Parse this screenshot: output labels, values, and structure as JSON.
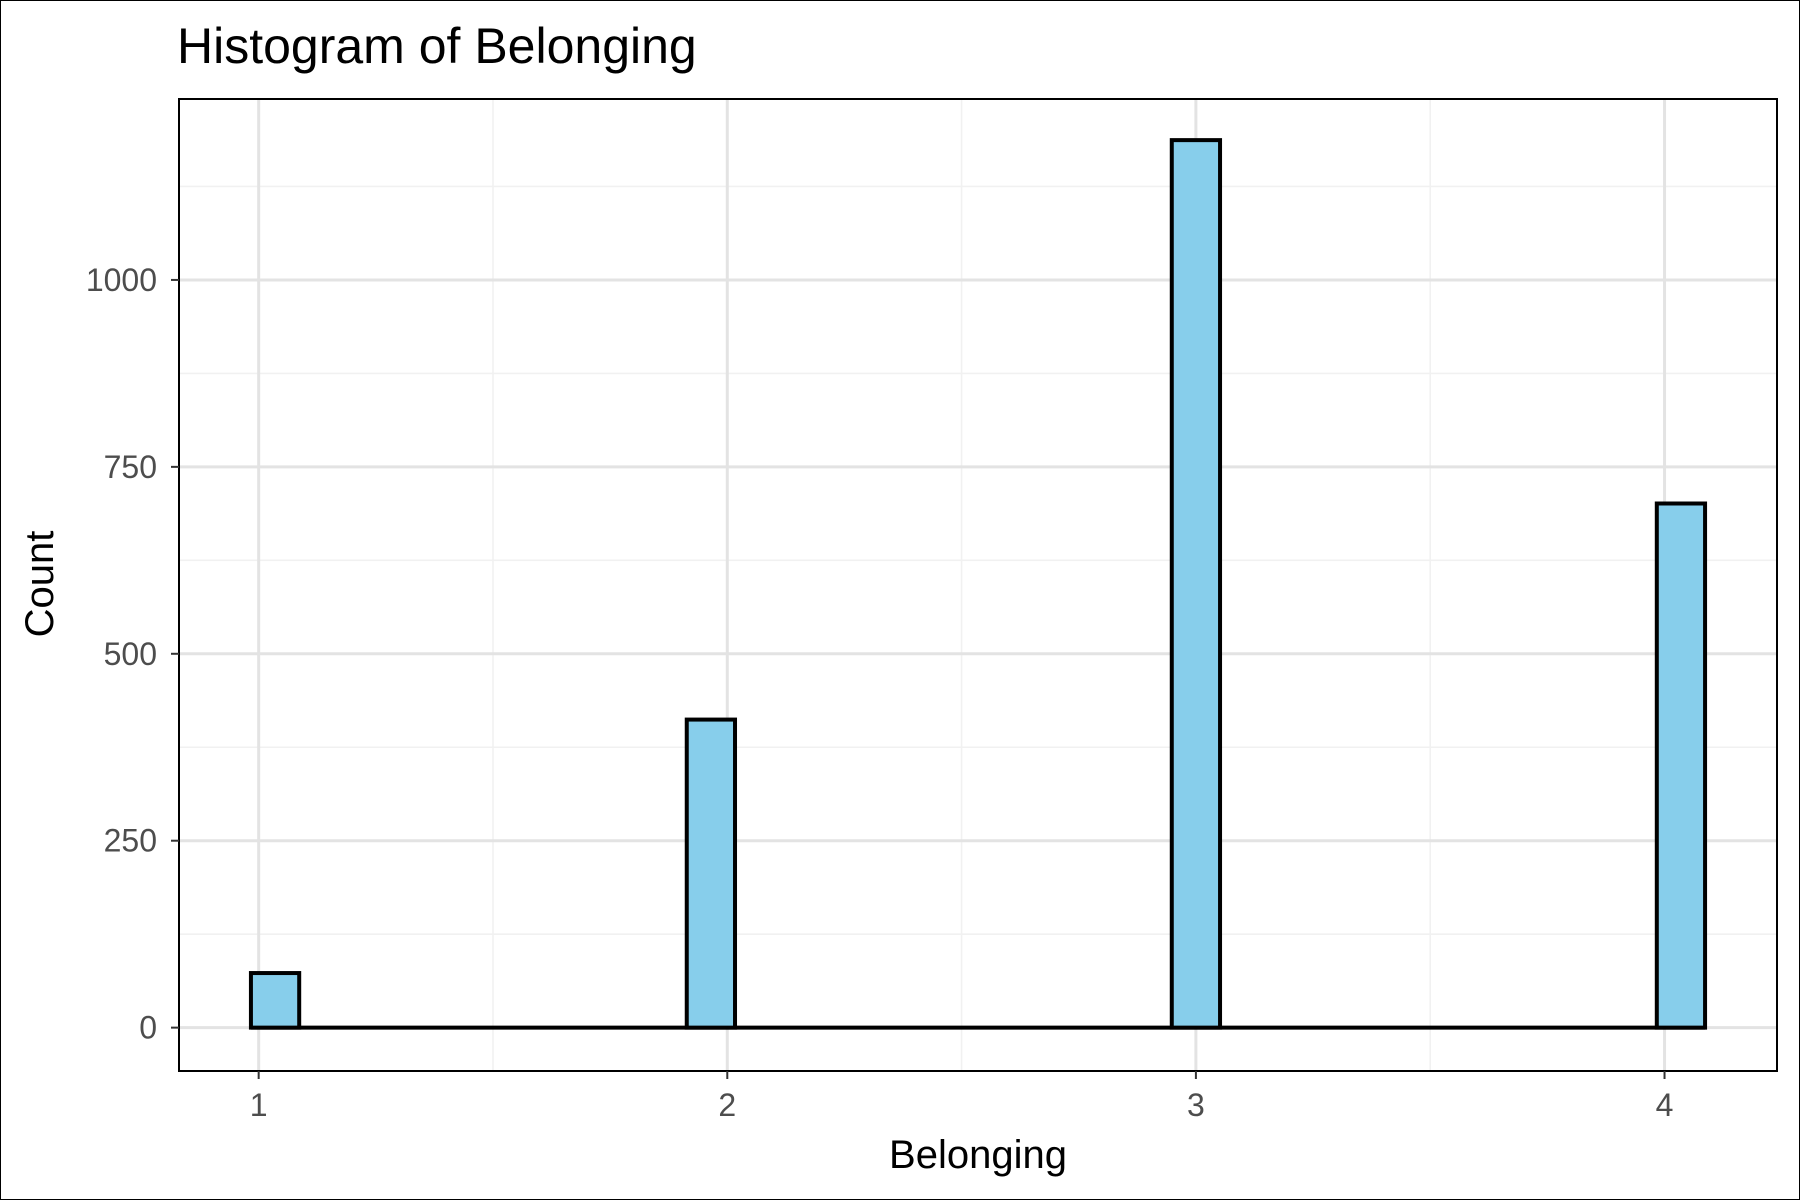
{
  "chart_data": {
    "type": "bar",
    "title": "Histogram of Belonging",
    "xlabel": "Belonging",
    "ylabel": "Count",
    "x_ticks": [
      1,
      2,
      3,
      4
    ],
    "y_ticks": [
      0,
      250,
      500,
      750,
      1000
    ],
    "xlim": [
      0.83,
      4.24
    ],
    "ylim": [
      -58,
      1242
    ],
    "bin_width": 0.103,
    "bins": [
      {
        "x": 1.035,
        "count": 73
      },
      {
        "x": 1.965,
        "count": 412
      },
      {
        "x": 3.0,
        "count": 1187
      },
      {
        "x": 4.035,
        "count": 701
      }
    ],
    "colors": {
      "bar_fill": "#87CEEB",
      "bar_stroke": "#000000"
    },
    "grid": true,
    "legend": "none"
  }
}
